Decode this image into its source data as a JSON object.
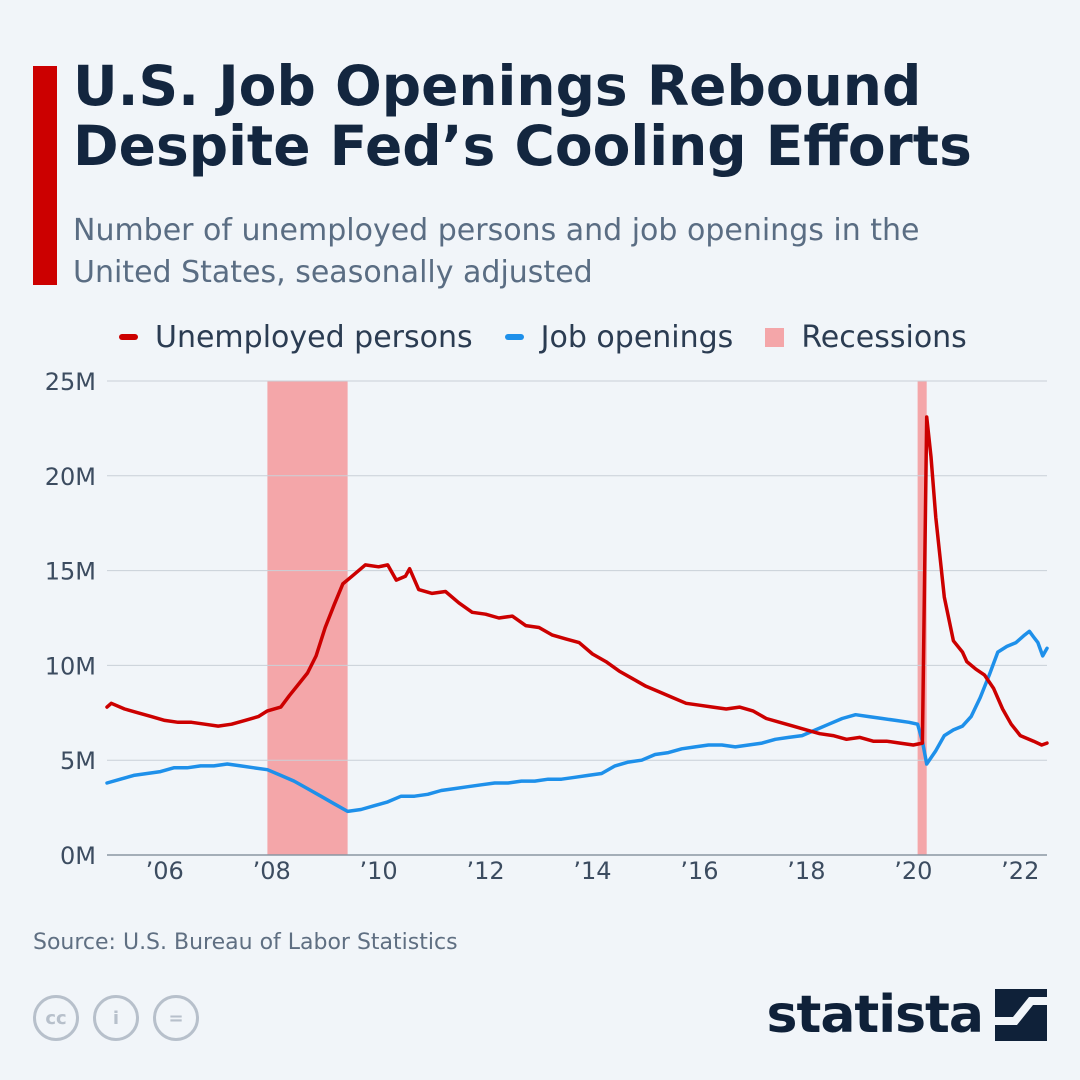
{
  "header": {
    "title": "U.S. Job Openings Rebound Despite Fed’s Cooling Efforts",
    "subtitle": "Number of unemployed persons and job openings in the United States, seasonally adjusted"
  },
  "legend": {
    "unemployed": "Unemployed persons",
    "openings": "Job openings",
    "recessions": "Recessions"
  },
  "colors": {
    "accent": "#cc0000",
    "unemployed": "#cc0000",
    "openings": "#1e90ea",
    "recession": "#f4a6a9",
    "grid": "#c9d0d8"
  },
  "chart_data": {
    "type": "line",
    "title": "U.S. Job Openings Rebound Despite Fed’s Cooling Efforts",
    "xlabel": "",
    "ylabel": "",
    "xlim": [
      2004.92,
      2022.5
    ],
    "ylim": [
      0,
      25
    ],
    "y_ticks": [
      0,
      5,
      10,
      15,
      20,
      25
    ],
    "y_tick_labels": [
      "0M",
      "5M",
      "10M",
      "15M",
      "20M",
      "25M"
    ],
    "x_ticks": [
      2006,
      2008,
      2010,
      2012,
      2014,
      2016,
      2018,
      2020,
      2022
    ],
    "x_tick_labels": [
      "’06",
      "’08",
      "’10",
      "’12",
      "’14",
      "’16",
      "’18",
      "’20",
      "’22"
    ],
    "grid": true,
    "recessions": [
      [
        2007.92,
        2009.42
      ],
      [
        2020.08,
        2020.25
      ]
    ],
    "series": [
      {
        "name": "Unemployed persons",
        "unit": "millions",
        "points": [
          [
            2004.92,
            7.8
          ],
          [
            2005.0,
            8.0
          ],
          [
            2005.25,
            7.7
          ],
          [
            2005.5,
            7.5
          ],
          [
            2005.75,
            7.3
          ],
          [
            2006.0,
            7.1
          ],
          [
            2006.25,
            7.0
          ],
          [
            2006.5,
            7.0
          ],
          [
            2006.75,
            6.9
          ],
          [
            2007.0,
            6.8
          ],
          [
            2007.25,
            6.9
          ],
          [
            2007.5,
            7.1
          ],
          [
            2007.75,
            7.3
          ],
          [
            2007.92,
            7.6
          ],
          [
            2008.17,
            7.8
          ],
          [
            2008.33,
            8.4
          ],
          [
            2008.5,
            9.0
          ],
          [
            2008.67,
            9.6
          ],
          [
            2008.83,
            10.5
          ],
          [
            2009.0,
            12.0
          ],
          [
            2009.17,
            13.2
          ],
          [
            2009.33,
            14.3
          ],
          [
            2009.5,
            14.7
          ],
          [
            2009.75,
            15.3
          ],
          [
            2010.0,
            15.2
          ],
          [
            2010.17,
            15.3
          ],
          [
            2010.33,
            14.5
          ],
          [
            2010.5,
            14.7
          ],
          [
            2010.58,
            15.1
          ],
          [
            2010.75,
            14.0
          ],
          [
            2011.0,
            13.8
          ],
          [
            2011.25,
            13.9
          ],
          [
            2011.5,
            13.3
          ],
          [
            2011.75,
            12.8
          ],
          [
            2012.0,
            12.7
          ],
          [
            2012.25,
            12.5
          ],
          [
            2012.5,
            12.6
          ],
          [
            2012.75,
            12.1
          ],
          [
            2013.0,
            12.0
          ],
          [
            2013.25,
            11.6
          ],
          [
            2013.5,
            11.4
          ],
          [
            2013.75,
            11.2
          ],
          [
            2014.0,
            10.6
          ],
          [
            2014.25,
            10.2
          ],
          [
            2014.5,
            9.7
          ],
          [
            2014.75,
            9.3
          ],
          [
            2015.0,
            8.9
          ],
          [
            2015.25,
            8.6
          ],
          [
            2015.5,
            8.3
          ],
          [
            2015.75,
            8.0
          ],
          [
            2016.0,
            7.9
          ],
          [
            2016.25,
            7.8
          ],
          [
            2016.5,
            7.7
          ],
          [
            2016.75,
            7.8
          ],
          [
            2017.0,
            7.6
          ],
          [
            2017.25,
            7.2
          ],
          [
            2017.5,
            7.0
          ],
          [
            2017.75,
            6.8
          ],
          [
            2018.0,
            6.6
          ],
          [
            2018.25,
            6.4
          ],
          [
            2018.5,
            6.3
          ],
          [
            2018.75,
            6.1
          ],
          [
            2019.0,
            6.2
          ],
          [
            2019.25,
            6.0
          ],
          [
            2019.5,
            6.0
          ],
          [
            2019.75,
            5.9
          ],
          [
            2020.0,
            5.8
          ],
          [
            2020.17,
            5.9
          ],
          [
            2020.25,
            23.1
          ],
          [
            2020.33,
            21.0
          ],
          [
            2020.42,
            17.8
          ],
          [
            2020.58,
            13.6
          ],
          [
            2020.75,
            11.3
          ],
          [
            2020.92,
            10.7
          ],
          [
            2021.0,
            10.2
          ],
          [
            2021.17,
            9.8
          ],
          [
            2021.33,
            9.5
          ],
          [
            2021.5,
            8.8
          ],
          [
            2021.67,
            7.7
          ],
          [
            2021.83,
            6.9
          ],
          [
            2022.0,
            6.3
          ],
          [
            2022.25,
            6.0
          ],
          [
            2022.4,
            5.8
          ],
          [
            2022.5,
            5.9
          ]
        ]
      },
      {
        "name": "Job openings",
        "unit": "millions",
        "points": [
          [
            2004.92,
            3.8
          ],
          [
            2005.17,
            4.0
          ],
          [
            2005.42,
            4.2
          ],
          [
            2005.67,
            4.3
          ],
          [
            2005.92,
            4.4
          ],
          [
            2006.17,
            4.6
          ],
          [
            2006.42,
            4.6
          ],
          [
            2006.67,
            4.7
          ],
          [
            2006.92,
            4.7
          ],
          [
            2007.17,
            4.8
          ],
          [
            2007.42,
            4.7
          ],
          [
            2007.67,
            4.6
          ],
          [
            2007.92,
            4.5
          ],
          [
            2008.17,
            4.2
          ],
          [
            2008.42,
            3.9
          ],
          [
            2008.67,
            3.5
          ],
          [
            2008.92,
            3.1
          ],
          [
            2009.17,
            2.7
          ],
          [
            2009.42,
            2.3
          ],
          [
            2009.67,
            2.4
          ],
          [
            2009.92,
            2.6
          ],
          [
            2010.17,
            2.8
          ],
          [
            2010.42,
            3.1
          ],
          [
            2010.67,
            3.1
          ],
          [
            2010.92,
            3.2
          ],
          [
            2011.17,
            3.4
          ],
          [
            2011.42,
            3.5
          ],
          [
            2011.67,
            3.6
          ],
          [
            2011.92,
            3.7
          ],
          [
            2012.17,
            3.8
          ],
          [
            2012.42,
            3.8
          ],
          [
            2012.67,
            3.9
          ],
          [
            2012.92,
            3.9
          ],
          [
            2013.17,
            4.0
          ],
          [
            2013.42,
            4.0
          ],
          [
            2013.67,
            4.1
          ],
          [
            2013.92,
            4.2
          ],
          [
            2014.17,
            4.3
          ],
          [
            2014.42,
            4.7
          ],
          [
            2014.67,
            4.9
          ],
          [
            2014.92,
            5.0
          ],
          [
            2015.17,
            5.3
          ],
          [
            2015.42,
            5.4
          ],
          [
            2015.67,
            5.6
          ],
          [
            2015.92,
            5.7
          ],
          [
            2016.17,
            5.8
          ],
          [
            2016.42,
            5.8
          ],
          [
            2016.67,
            5.7
          ],
          [
            2016.92,
            5.8
          ],
          [
            2017.17,
            5.9
          ],
          [
            2017.42,
            6.1
          ],
          [
            2017.67,
            6.2
          ],
          [
            2017.92,
            6.3
          ],
          [
            2018.17,
            6.6
          ],
          [
            2018.42,
            6.9
          ],
          [
            2018.67,
            7.2
          ],
          [
            2018.92,
            7.4
          ],
          [
            2019.17,
            7.3
          ],
          [
            2019.42,
            7.2
          ],
          [
            2019.67,
            7.1
          ],
          [
            2019.92,
            7.0
          ],
          [
            2020.08,
            6.9
          ],
          [
            2020.17,
            6.0
          ],
          [
            2020.25,
            4.8
          ],
          [
            2020.42,
            5.5
          ],
          [
            2020.58,
            6.3
          ],
          [
            2020.75,
            6.6
          ],
          [
            2020.92,
            6.8
          ],
          [
            2021.08,
            7.3
          ],
          [
            2021.25,
            8.3
          ],
          [
            2021.42,
            9.5
          ],
          [
            2021.58,
            10.7
          ],
          [
            2021.75,
            11.0
          ],
          [
            2021.92,
            11.2
          ],
          [
            2022.08,
            11.6
          ],
          [
            2022.17,
            11.8
          ],
          [
            2022.25,
            11.5
          ],
          [
            2022.33,
            11.2
          ],
          [
            2022.42,
            10.5
          ],
          [
            2022.5,
            10.9
          ]
        ]
      }
    ]
  },
  "footer": {
    "source": "Source: U.S. Bureau of Labor Statistics",
    "cc_icons": [
      "cc",
      "i",
      "="
    ],
    "brand": "statista"
  }
}
